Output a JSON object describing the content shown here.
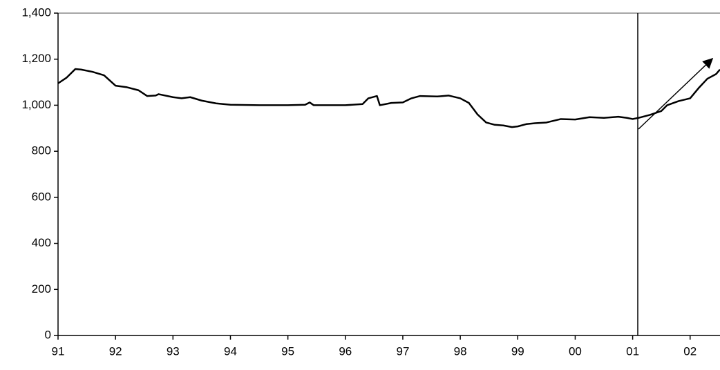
{
  "chart_data": {
    "type": "line",
    "x": [
      1991.0,
      1991.15,
      1991.3,
      1991.4,
      1991.6,
      1991.8,
      1992.0,
      1992.2,
      1992.4,
      1992.55,
      1992.7,
      1992.75,
      1993.0,
      1993.15,
      1993.3,
      1993.5,
      1993.75,
      1994.0,
      1994.5,
      1995.0,
      1995.3,
      1995.38,
      1995.45,
      1996.0,
      1996.3,
      1996.4,
      1996.55,
      1996.6,
      1996.8,
      1997.0,
      1997.15,
      1997.3,
      1997.6,
      1997.8,
      1998.0,
      1998.15,
      1998.3,
      1998.45,
      1998.6,
      1998.75,
      1998.9,
      1999.0,
      1999.15,
      1999.3,
      1999.5,
      1999.75,
      2000.0,
      2000.25,
      2000.5,
      2000.75,
      2000.9,
      2001.0,
      2001.1,
      2001.3,
      2001.5,
      2001.6,
      2001.8,
      2002.0,
      2002.15,
      2002.3,
      2002.45,
      2002.52
    ],
    "values": [
      1095,
      1120,
      1157,
      1155,
      1145,
      1130,
      1085,
      1078,
      1065,
      1040,
      1042,
      1048,
      1035,
      1030,
      1035,
      1020,
      1008,
      1002,
      1000,
      1000,
      1002,
      1012,
      1000,
      1000,
      1005,
      1030,
      1040,
      1000,
      1010,
      1012,
      1030,
      1040,
      1038,
      1042,
      1030,
      1010,
      960,
      925,
      915,
      912,
      905,
      908,
      918,
      922,
      925,
      940,
      938,
      948,
      945,
      950,
      945,
      940,
      945,
      958,
      975,
      1000,
      1018,
      1030,
      1075,
      1115,
      1135,
      1155
    ],
    "color": "#000000",
    "xlim": [
      1991.0,
      2002.52
    ],
    "xticks": [
      {
        "value": 1991,
        "label": "91"
      },
      {
        "value": 1992,
        "label": "92"
      },
      {
        "value": 1993,
        "label": "93"
      },
      {
        "value": 1994,
        "label": "94"
      },
      {
        "value": 1995,
        "label": "95"
      },
      {
        "value": 1996,
        "label": "96"
      },
      {
        "value": 1997,
        "label": "97"
      },
      {
        "value": 1998,
        "label": "98"
      },
      {
        "value": 1999,
        "label": "99"
      },
      {
        "value": 2000,
        "label": "00"
      },
      {
        "value": 2001,
        "label": "01"
      },
      {
        "value": 2002,
        "label": "02"
      }
    ],
    "ylim": [
      0,
      1400
    ],
    "yticks": [
      0,
      {
        "value": 200,
        "label": "200"
      },
      400,
      600,
      800,
      {
        "value": 1000,
        "label": "1,000"
      },
      {
        "value": 1200,
        "label": "1,200"
      },
      {
        "value": 1400,
        "label": "1,400"
      }
    ]
  }
}
